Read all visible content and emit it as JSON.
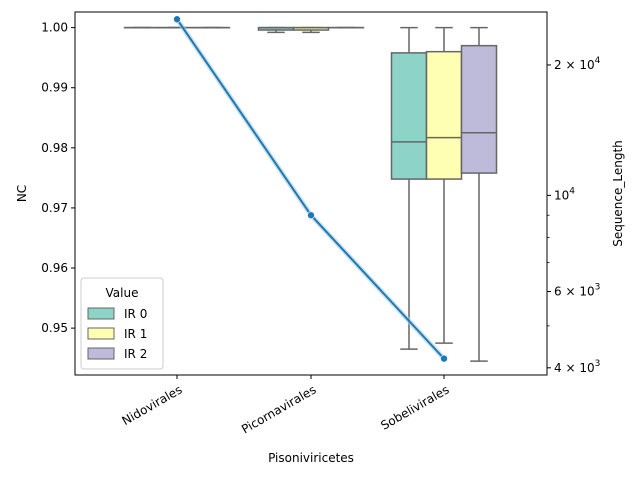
{
  "chart_data": {
    "type": "box",
    "xlabel": "Pisoniviricetes",
    "ylabel_left": "NC",
    "ylabel_right": "Sequence_Length",
    "categories": [
      "Nidovirales",
      "Picornavirales",
      "Sobelivirales"
    ],
    "y_left": {
      "range": [
        0.9422,
        1.0026
      ],
      "ticks": [
        0.95,
        0.96,
        0.97,
        0.98,
        0.99,
        1.0
      ],
      "tick_labels": [
        "0.95",
        "0.96",
        "0.97",
        "0.98",
        "0.99",
        "1.00"
      ]
    },
    "y_right": {
      "scale": "log",
      "range": [
        3850,
        26500
      ],
      "major_ticks": [
        4000,
        6000,
        10000,
        20000
      ],
      "major_labels": [
        {
          "base": "4",
          "mult": "× 10",
          "exp": "3"
        },
        {
          "base": "6",
          "mult": "× 10",
          "exp": "3"
        },
        {
          "base": "10",
          "mult": "",
          "exp": "4"
        },
        {
          "base": "2",
          "mult": "× 10",
          "exp": "4"
        }
      ],
      "minor_ticks": [
        5000,
        7000,
        8000,
        9000
      ]
    },
    "legend": {
      "title": "Value",
      "placement": "lower-left",
      "entries": [
        {
          "label": "IR 0",
          "color": "#8dd3c7"
        },
        {
          "label": "IR 1",
          "color": "#ffffb3"
        },
        {
          "label": "IR 2",
          "color": "#bebada"
        }
      ]
    },
    "boxes": [
      {
        "category": "Nidovirales",
        "series": "IR 0",
        "min": 1.0,
        "q1": 1.0,
        "median": 1.0,
        "q3": 1.0,
        "max": 1.0
      },
      {
        "category": "Nidovirales",
        "series": "IR 1",
        "min": 1.0,
        "q1": 1.0,
        "median": 1.0,
        "q3": 1.0,
        "max": 1.0
      },
      {
        "category": "Nidovirales",
        "series": "IR 2",
        "min": 1.0,
        "q1": 1.0,
        "median": 1.0,
        "q3": 1.0,
        "max": 1.0
      },
      {
        "category": "Picornavirales",
        "series": "IR 0",
        "min": 0.9992,
        "q1": 0.9996,
        "median": 1.0,
        "q3": 1.0,
        "max": 1.0
      },
      {
        "category": "Picornavirales",
        "series": "IR 1",
        "min": 0.9992,
        "q1": 0.9996,
        "median": 1.0,
        "q3": 1.0,
        "max": 1.0
      },
      {
        "category": "Picornavirales",
        "series": "IR 2",
        "min": 1.0,
        "q1": 1.0,
        "median": 1.0,
        "q3": 1.0,
        "max": 1.0
      },
      {
        "category": "Sobelivirales",
        "series": "IR 0",
        "min": 0.9465,
        "q1": 0.9748,
        "median": 0.981,
        "q3": 0.9958,
        "max": 1.0
      },
      {
        "category": "Sobelivirales",
        "series": "IR 1",
        "min": 0.9475,
        "q1": 0.9748,
        "median": 0.9817,
        "q3": 0.996,
        "max": 1.0
      },
      {
        "category": "Sobelivirales",
        "series": "IR 2",
        "min": 0.9445,
        "q1": 0.9758,
        "median": 0.9825,
        "q3": 0.997,
        "max": 1.0
      }
    ],
    "line": {
      "axis": "right",
      "color": "#1f77b4",
      "values": [
        25500,
        9000,
        4200
      ]
    }
  }
}
